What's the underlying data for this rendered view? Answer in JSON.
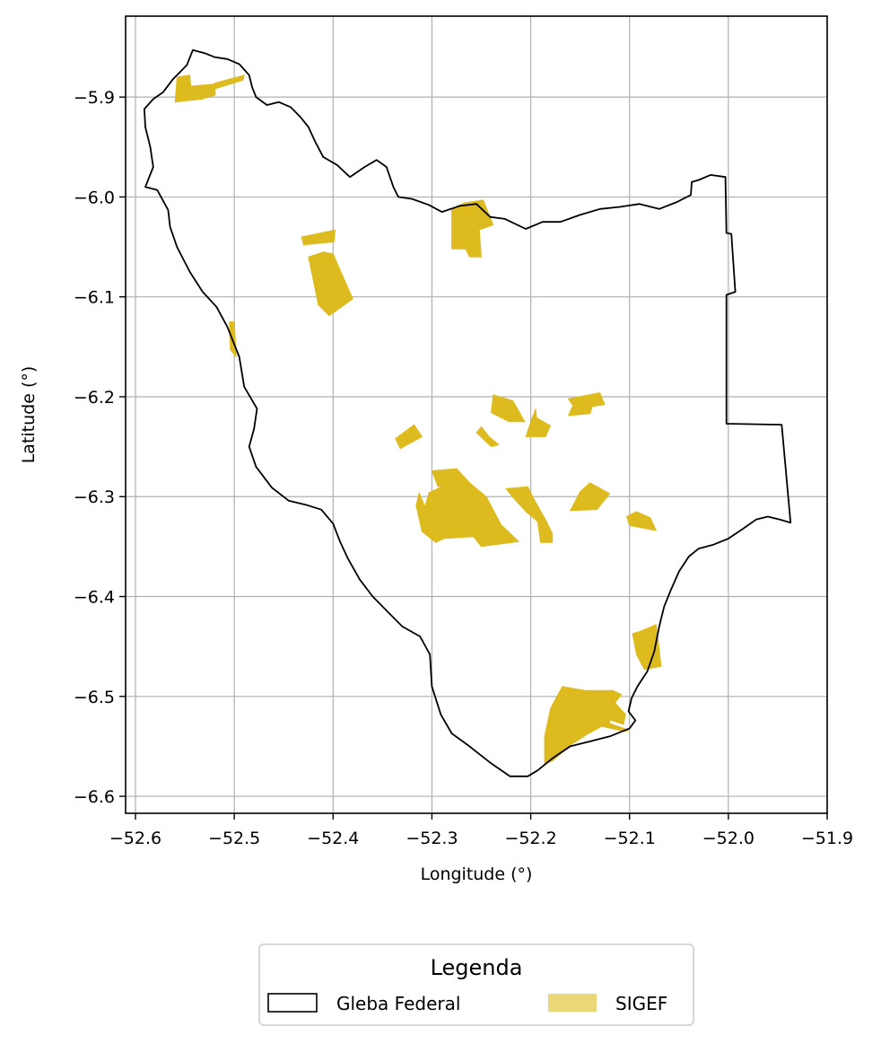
{
  "chart_data": {
    "type": "map",
    "xlabel": "Longitude (°)",
    "ylabel": "Latitude (°)",
    "xlim": [
      -52.61,
      -51.9
    ],
    "ylim": [
      -6.617,
      -5.819
    ],
    "x_ticks": [
      -52.6,
      -52.5,
      -52.4,
      -52.3,
      -52.2,
      -52.1,
      -52.0,
      -51.9
    ],
    "x_tick_labels": [
      "−52.6",
      "−52.5",
      "−52.4",
      "−52.3",
      "−52.2",
      "−52.1",
      "−52.0",
      "−51.9"
    ],
    "y_ticks": [
      -5.9,
      -6.0,
      -6.1,
      -6.2,
      -6.3,
      -6.4,
      -6.5,
      -6.6
    ],
    "y_tick_labels": [
      "−5.9",
      "−6.0",
      "−6.1",
      "−6.2",
      "−6.3",
      "−6.4",
      "−6.5",
      "−6.6"
    ],
    "grid": true,
    "legend": {
      "title": "Legenda",
      "placement": "bottom-center",
      "items": [
        {
          "label": "Gleba Federal",
          "style": "outline",
          "color": "#000000"
        },
        {
          "label": "SIGEF",
          "style": "fill",
          "color": "#ddba1e"
        }
      ]
    },
    "boundary": {
      "name": "Gleba Federal",
      "color": "#000000",
      "coords": [
        [
          -52.542,
          -5.853
        ],
        [
          -52.53,
          -5.856
        ],
        [
          -52.52,
          -5.86
        ],
        [
          -52.507,
          -5.862
        ],
        [
          -52.495,
          -5.867
        ],
        [
          -52.485,
          -5.878
        ],
        [
          -52.482,
          -5.89
        ],
        [
          -52.478,
          -5.9
        ],
        [
          -52.467,
          -5.908
        ],
        [
          -52.455,
          -5.905
        ],
        [
          -52.443,
          -5.91
        ],
        [
          -52.433,
          -5.92
        ],
        [
          -52.425,
          -5.93
        ],
        [
          -52.418,
          -5.945
        ],
        [
          -52.41,
          -5.96
        ],
        [
          -52.396,
          -5.968
        ],
        [
          -52.383,
          -5.98
        ],
        [
          -52.368,
          -5.97
        ],
        [
          -52.356,
          -5.963
        ],
        [
          -52.346,
          -5.97
        ],
        [
          -52.339,
          -5.99
        ],
        [
          -52.334,
          -6.0
        ],
        [
          -52.32,
          -6.002
        ],
        [
          -52.303,
          -6.008
        ],
        [
          -52.29,
          -6.015
        ],
        [
          -52.272,
          -6.009
        ],
        [
          -52.255,
          -6.007
        ],
        [
          -52.241,
          -6.02
        ],
        [
          -52.226,
          -6.022
        ],
        [
          -52.205,
          -6.032
        ],
        [
          -52.188,
          -6.025
        ],
        [
          -52.17,
          -6.025
        ],
        [
          -52.15,
          -6.018
        ],
        [
          -52.13,
          -6.012
        ],
        [
          -52.11,
          -6.01
        ],
        [
          -52.09,
          -6.007
        ],
        [
          -52.07,
          -6.012
        ],
        [
          -52.052,
          -6.005
        ],
        [
          -52.038,
          -5.998
        ],
        [
          -52.037,
          -5.985
        ],
        [
          -52.03,
          -5.983
        ],
        [
          -52.018,
          -5.978
        ],
        [
          -52.003,
          -5.98
        ],
        [
          -52.002,
          -6.036
        ],
        [
          -51.997,
          -6.037
        ],
        [
          -51.993,
          -6.095
        ],
        [
          -52.002,
          -6.098
        ],
        [
          -52.002,
          -6.227
        ],
        [
          -51.946,
          -6.228
        ],
        [
          -51.937,
          -6.326
        ],
        [
          -51.948,
          -6.323
        ],
        [
          -51.96,
          -6.32
        ],
        [
          -51.972,
          -6.323
        ],
        [
          -51.985,
          -6.332
        ],
        [
          -52.0,
          -6.342
        ],
        [
          -52.015,
          -6.348
        ],
        [
          -52.03,
          -6.352
        ],
        [
          -52.04,
          -6.36
        ],
        [
          -52.05,
          -6.375
        ],
        [
          -52.058,
          -6.393
        ],
        [
          -52.065,
          -6.41
        ],
        [
          -52.07,
          -6.43
        ],
        [
          -52.075,
          -6.455
        ],
        [
          -52.082,
          -6.475
        ],
        [
          -52.092,
          -6.49
        ],
        [
          -52.098,
          -6.502
        ],
        [
          -52.101,
          -6.515
        ],
        [
          -52.094,
          -6.524
        ],
        [
          -52.1,
          -6.532
        ],
        [
          -52.12,
          -6.54
        ],
        [
          -52.14,
          -6.545
        ],
        [
          -52.16,
          -6.55
        ],
        [
          -52.178,
          -6.562
        ],
        [
          -52.193,
          -6.574
        ],
        [
          -52.203,
          -6.58
        ],
        [
          -52.221,
          -6.58
        ],
        [
          -52.24,
          -6.567
        ],
        [
          -52.262,
          -6.55
        ],
        [
          -52.28,
          -6.537
        ],
        [
          -52.291,
          -6.518
        ],
        [
          -52.3,
          -6.49
        ],
        [
          -52.302,
          -6.458
        ],
        [
          -52.312,
          -6.44
        ],
        [
          -52.33,
          -6.43
        ],
        [
          -52.345,
          -6.415
        ],
        [
          -52.36,
          -6.4
        ],
        [
          -52.373,
          -6.383
        ],
        [
          -52.385,
          -6.362
        ],
        [
          -52.393,
          -6.345
        ],
        [
          -52.4,
          -6.327
        ],
        [
          -52.412,
          -6.313
        ],
        [
          -52.428,
          -6.308
        ],
        [
          -52.445,
          -6.304
        ],
        [
          -52.462,
          -6.291
        ],
        [
          -52.478,
          -6.27
        ],
        [
          -52.485,
          -6.25
        ],
        [
          -52.48,
          -6.232
        ],
        [
          -52.477,
          -6.212
        ],
        [
          -52.49,
          -6.19
        ],
        [
          -52.495,
          -6.16
        ],
        [
          -52.507,
          -6.13
        ],
        [
          -52.518,
          -6.11
        ],
        [
          -52.532,
          -6.095
        ],
        [
          -52.545,
          -6.075
        ],
        [
          -52.558,
          -6.05
        ],
        [
          -52.565,
          -6.03
        ],
        [
          -52.567,
          -6.013
        ],
        [
          -52.578,
          -5.993
        ],
        [
          -52.59,
          -5.99
        ],
        [
          -52.582,
          -5.97
        ],
        [
          -52.585,
          -5.95
        ],
        [
          -52.59,
          -5.93
        ],
        [
          -52.591,
          -5.912
        ],
        [
          -52.582,
          -5.902
        ],
        [
          -52.572,
          -5.895
        ],
        [
          -52.562,
          -5.882
        ],
        [
          -52.548,
          -5.868
        ],
        [
          -52.542,
          -5.853
        ]
      ]
    },
    "sigef_parcels": {
      "name": "SIGEF",
      "color": "#ddba1e",
      "polygons": [
        [
          [
            -52.558,
            -5.88
          ],
          [
            -52.545,
            -5.878
          ],
          [
            -52.544,
            -5.889
          ],
          [
            -52.52,
            -5.887
          ],
          [
            -52.519,
            -5.898
          ],
          [
            -52.532,
            -5.902
          ],
          [
            -52.56,
            -5.905
          ]
        ],
        [
          [
            -52.52,
            -5.886
          ],
          [
            -52.49,
            -5.878
          ],
          [
            -52.491,
            -5.883
          ],
          [
            -52.52,
            -5.892
          ]
        ],
        [
          [
            -52.28,
            -6.013
          ],
          [
            -52.268,
            -6.006
          ],
          [
            -52.248,
            -6.003
          ],
          [
            -52.238,
            -6.028
          ],
          [
            -52.252,
            -6.033
          ],
          [
            -52.25,
            -6.06
          ],
          [
            -52.262,
            -6.06
          ],
          [
            -52.266,
            -6.052
          ],
          [
            -52.28,
            -6.052
          ]
        ],
        [
          [
            -52.432,
            -6.04
          ],
          [
            -52.398,
            -6.033
          ],
          [
            -52.399,
            -6.045
          ],
          [
            -52.43,
            -6.048
          ]
        ],
        [
          [
            -52.425,
            -6.06
          ],
          [
            -52.41,
            -6.055
          ],
          [
            -52.4,
            -6.057
          ],
          [
            -52.38,
            -6.102
          ],
          [
            -52.404,
            -6.119
          ],
          [
            -52.415,
            -6.108
          ]
        ],
        [
          [
            -52.505,
            -6.125
          ],
          [
            -52.5,
            -6.125
          ],
          [
            -52.498,
            -6.16
          ],
          [
            -52.504,
            -6.153
          ]
        ],
        [
          [
            -52.238,
            -6.198
          ],
          [
            -52.218,
            -6.204
          ],
          [
            -52.206,
            -6.225
          ],
          [
            -52.222,
            -6.225
          ],
          [
            -52.24,
            -6.216
          ]
        ],
        [
          [
            -52.195,
            -6.212
          ],
          [
            -52.2,
            -6.225
          ],
          [
            -52.205,
            -6.24
          ],
          [
            -52.185,
            -6.24
          ],
          [
            -52.18,
            -6.229
          ],
          [
            -52.194,
            -6.221
          ]
        ],
        [
          [
            -52.162,
            -6.202
          ],
          [
            -52.13,
            -6.196
          ],
          [
            -52.125,
            -6.208
          ],
          [
            -52.155,
            -6.212
          ]
        ],
        [
          [
            -52.158,
            -6.21
          ],
          [
            -52.135,
            -6.202
          ],
          [
            -52.14,
            -6.217
          ],
          [
            -52.162,
            -6.219
          ]
        ],
        [
          [
            -52.337,
            -6.242
          ],
          [
            -52.318,
            -6.228
          ],
          [
            -52.31,
            -6.24
          ],
          [
            -52.332,
            -6.252
          ]
        ],
        [
          [
            -52.25,
            -6.23
          ],
          [
            -52.242,
            -6.24
          ],
          [
            -52.232,
            -6.248
          ],
          [
            -52.24,
            -6.25
          ],
          [
            -52.255,
            -6.236
          ]
        ],
        [
          [
            -52.29,
            -6.29
          ],
          [
            -52.275,
            -6.272
          ],
          [
            -52.262,
            -6.286
          ],
          [
            -52.245,
            -6.3
          ],
          [
            -52.23,
            -6.328
          ],
          [
            -52.212,
            -6.345
          ],
          [
            -52.25,
            -6.35
          ],
          [
            -52.258,
            -6.34
          ],
          [
            -52.288,
            -6.342
          ],
          [
            -52.3,
            -6.326
          ],
          [
            -52.307,
            -6.31
          ],
          [
            -52.303,
            -6.296
          ]
        ],
        [
          [
            -52.3,
            -6.274
          ],
          [
            -52.294,
            -6.29
          ],
          [
            -52.262,
            -6.286
          ],
          [
            -52.275,
            -6.272
          ]
        ],
        [
          [
            -52.313,
            -6.296
          ],
          [
            -52.3,
            -6.326
          ],
          [
            -52.288,
            -6.342
          ],
          [
            -52.296,
            -6.346
          ],
          [
            -52.31,
            -6.335
          ],
          [
            -52.316,
            -6.309
          ]
        ],
        [
          [
            -52.225,
            -6.292
          ],
          [
            -52.203,
            -6.29
          ],
          [
            -52.197,
            -6.302
          ],
          [
            -52.185,
            -6.323
          ],
          [
            -52.178,
            -6.337
          ],
          [
            -52.178,
            -6.346
          ],
          [
            -52.19,
            -6.346
          ],
          [
            -52.193,
            -6.325
          ],
          [
            -52.205,
            -6.315
          ],
          [
            -52.217,
            -6.302
          ]
        ],
        [
          [
            -52.15,
            -6.295
          ],
          [
            -52.14,
            -6.286
          ],
          [
            -52.12,
            -6.297
          ],
          [
            -52.133,
            -6.313
          ],
          [
            -52.16,
            -6.314
          ]
        ],
        [
          [
            -52.103,
            -6.32
          ],
          [
            -52.093,
            -6.315
          ],
          [
            -52.079,
            -6.321
          ],
          [
            -52.073,
            -6.334
          ],
          [
            -52.1,
            -6.329
          ]
        ],
        [
          [
            -52.097,
            -6.437
          ],
          [
            -52.09,
            -6.435
          ],
          [
            -52.073,
            -6.428
          ],
          [
            -52.068,
            -6.47
          ],
          [
            -52.085,
            -6.473
          ],
          [
            -52.093,
            -6.458
          ]
        ],
        [
          [
            -52.168,
            -6.49
          ],
          [
            -52.145,
            -6.494
          ],
          [
            -52.117,
            -6.494
          ],
          [
            -52.108,
            -6.498
          ],
          [
            -52.12,
            -6.513
          ],
          [
            -52.12,
            -6.527
          ],
          [
            -52.1,
            -6.534
          ],
          [
            -52.105,
            -6.535
          ],
          [
            -52.128,
            -6.53
          ],
          [
            -52.143,
            -6.538
          ],
          [
            -52.16,
            -6.549
          ],
          [
            -52.177,
            -6.564
          ],
          [
            -52.186,
            -6.568
          ],
          [
            -52.186,
            -6.54
          ],
          [
            -52.18,
            -6.512
          ]
        ],
        [
          [
            -52.125,
            -6.5
          ],
          [
            -52.115,
            -6.506
          ],
          [
            -52.104,
            -6.518
          ],
          [
            -52.106,
            -6.528
          ],
          [
            -52.122,
            -6.523
          ]
        ]
      ]
    }
  }
}
